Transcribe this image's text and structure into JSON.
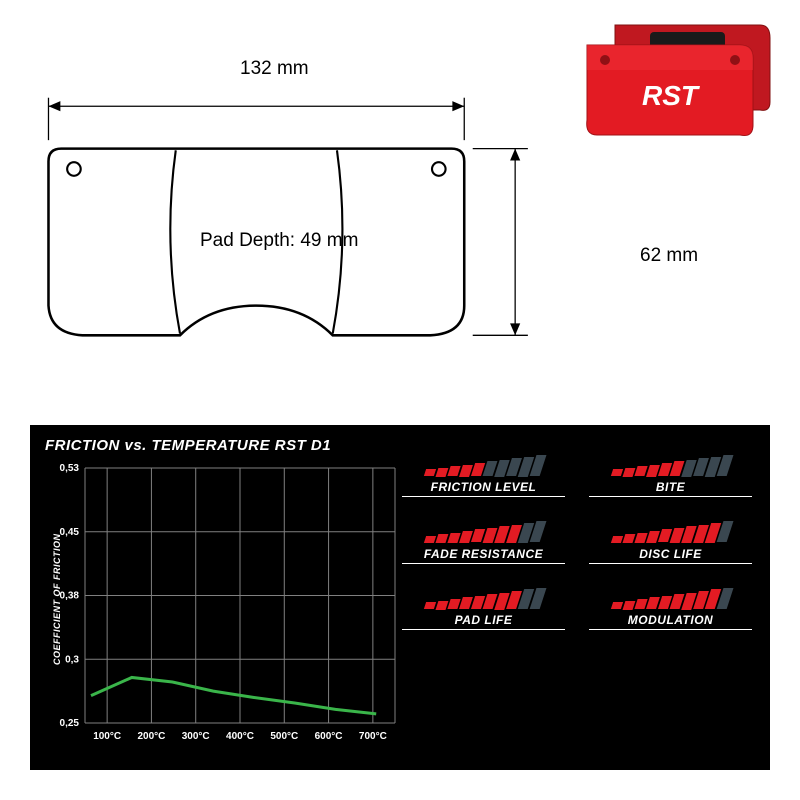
{
  "brand": "RST",
  "dimensions": {
    "width_label": "132 mm",
    "height_label": "62 mm",
    "depth_label": "Pad Depth: 49 mm"
  },
  "product_colors": {
    "pad_red": "#e31b23",
    "pad_dark": "#2a2a2a",
    "brand_text": "#ffffff"
  },
  "chart": {
    "title": "FRICTION vs. TEMPERATURE RST D1",
    "y_axis_label": "COEFFICIENT OF FRICTION",
    "y_ticks": [
      "0,53",
      "0,45",
      "0,38",
      "0,3",
      "0,25"
    ],
    "x_ticks": [
      "100°C",
      "200°C",
      "300°C",
      "400°C",
      "500°C",
      "600°C",
      "700°C"
    ],
    "line_color": "#3ab54a",
    "grid_color": "#808080",
    "text_color": "#ffffff",
    "data_y": [
      0.28,
      0.3,
      0.295,
      0.285,
      0.278,
      0.272,
      0.265,
      0.26
    ],
    "y_range": [
      0.25,
      0.53
    ]
  },
  "ratings": {
    "total_bars": 10,
    "active_color": "#e31b23",
    "inactive_color": "#3a4750",
    "items": [
      {
        "label": "FRICTION LEVEL",
        "value": 5
      },
      {
        "label": "BITE",
        "value": 6
      },
      {
        "label": "FADE RESISTANCE",
        "value": 8
      },
      {
        "label": "DISC LIFE",
        "value": 9
      },
      {
        "label": "PAD LIFE",
        "value": 8
      },
      {
        "label": "MODULATION",
        "value": 9
      }
    ]
  }
}
